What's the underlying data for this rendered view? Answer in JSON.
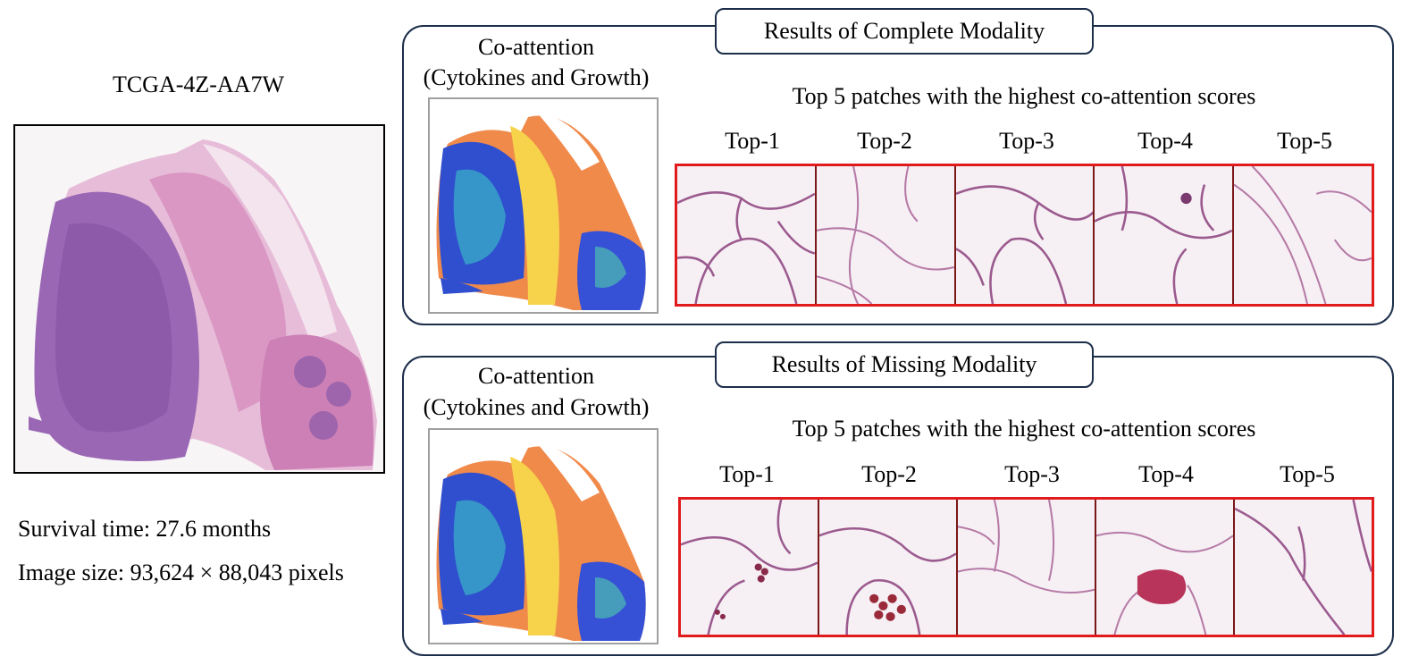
{
  "slide": {
    "case_id": "TCGA-4Z-AA7W",
    "survival_time": "Survival time: 27.6 months",
    "image_size": "Image size: 93,624 × 88,043 pixels"
  },
  "panels": [
    {
      "label": "Results of Complete Modality",
      "coattention_title_line1": "Co-attention",
      "coattention_title_line2": "(Cytokines and Growth)",
      "patches_title": "Top 5 patches with the highest co-attention scores",
      "top_labels": [
        "Top-1",
        "Top-2",
        "Top-3",
        "Top-4",
        "Top-5"
      ]
    },
    {
      "label": "Results of Missing Modality",
      "coattention_title_line1": "Co-attention",
      "coattention_title_line2": "(Cytokines and Growth)",
      "patches_title": "Top 5 patches with the highest co-attention scores",
      "top_labels": [
        "Top-1",
        "Top-2",
        "Top-3",
        "Top-4",
        "Top-5"
      ]
    }
  ],
  "colors": {
    "panel_border": "#1c2e4a",
    "patch_border": "#e11b1b",
    "tissue_pink": "#d98cc0",
    "tissue_purple": "#8a5aa8"
  }
}
